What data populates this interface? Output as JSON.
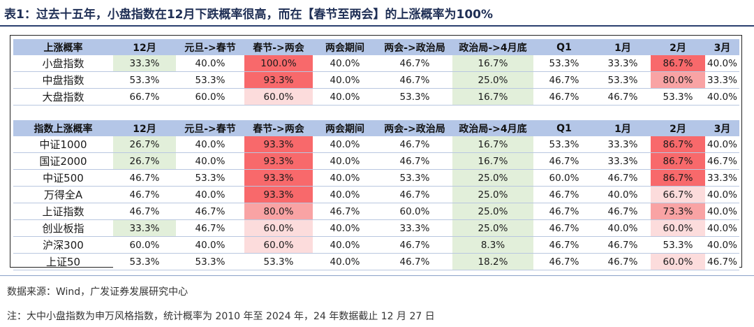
{
  "title": "表1：过去十五年，小盘指数在12月下跌概率很高，而在【春节至两会】的上涨概率为100%",
  "columns": [
    "12月",
    "元旦->春节",
    "春节->两会",
    "两会期间",
    "两会->政治局",
    "政治局->4月底",
    "Q1",
    "1月",
    "2月",
    "3月"
  ],
  "colors": {
    "header_bg": "#b4c6e7",
    "green_light": "#e2efda",
    "red_strong": "#f8696b",
    "red_mid": "#f9a3a4",
    "red_light": "#fcdcdc"
  },
  "table1": {
    "header": "上涨概率",
    "rows": [
      {
        "label": "小盘指数",
        "values": [
          "33.3%",
          "40.0%",
          "100.0%",
          "40.0%",
          "46.7%",
          "16.7%",
          "53.3%",
          "33.3%",
          "86.7%",
          "40.0%"
        ]
      },
      {
        "label": "中盘指数",
        "values": [
          "53.3%",
          "53.3%",
          "93.3%",
          "40.0%",
          "46.7%",
          "25.0%",
          "46.7%",
          "53.3%",
          "80.0%",
          "33.3%"
        ]
      },
      {
        "label": "大盘指数",
        "values": [
          "66.7%",
          "60.0%",
          "60.0%",
          "40.0%",
          "53.3%",
          "16.7%",
          "46.7%",
          "46.7%",
          "53.3%",
          "40.0%"
        ]
      }
    ]
  },
  "table2": {
    "header": "指数上涨概率",
    "rows": [
      {
        "label": "中证1000",
        "values": [
          "26.7%",
          "40.0%",
          "93.3%",
          "40.0%",
          "46.7%",
          "16.7%",
          "53.3%",
          "33.3%",
          "86.7%",
          "40.0%"
        ]
      },
      {
        "label": "国证2000",
        "values": [
          "26.7%",
          "40.0%",
          "93.3%",
          "40.0%",
          "46.7%",
          "16.7%",
          "46.7%",
          "33.3%",
          "86.7%",
          "46.7%"
        ]
      },
      {
        "label": "中证500",
        "values": [
          "46.7%",
          "53.3%",
          "93.3%",
          "40.0%",
          "53.3%",
          "25.0%",
          "60.0%",
          "46.7%",
          "86.7%",
          "33.3%"
        ]
      },
      {
        "label": "万得全A",
        "values": [
          "46.7%",
          "40.0%",
          "93.3%",
          "40.0%",
          "46.7%",
          "25.0%",
          "46.7%",
          "40.0%",
          "66.7%",
          "40.0%"
        ]
      },
      {
        "label": "上证指数",
        "values": [
          "46.7%",
          "46.7%",
          "80.0%",
          "46.7%",
          "60.0%",
          "25.0%",
          "46.7%",
          "46.7%",
          "73.3%",
          "40.0%"
        ]
      },
      {
        "label": "创业板指",
        "values": [
          "33.3%",
          "46.7%",
          "60.0%",
          "40.0%",
          "33.3%",
          "25.0%",
          "46.7%",
          "40.0%",
          "60.0%",
          "40.0%"
        ]
      },
      {
        "label": "沪深300",
        "values": [
          "60.0%",
          "40.0%",
          "60.0%",
          "40.0%",
          "46.7%",
          "8.3%",
          "46.7%",
          "46.7%",
          "53.3%",
          "40.0%"
        ]
      },
      {
        "label": "上证50",
        "values": [
          "53.3%",
          "53.3%",
          "53.3%",
          "40.0%",
          "46.7%",
          "18.2%",
          "46.7%",
          "46.7%",
          "60.0%",
          "46.7%"
        ]
      }
    ]
  },
  "footer": {
    "source": "数据来源：Wind，广发证券发展研究中心",
    "note": "注：大中小盘指数为申万风格指数，统计概率为 2010 年至 2024 年，24 年数据截止 12 月 27 日"
  }
}
